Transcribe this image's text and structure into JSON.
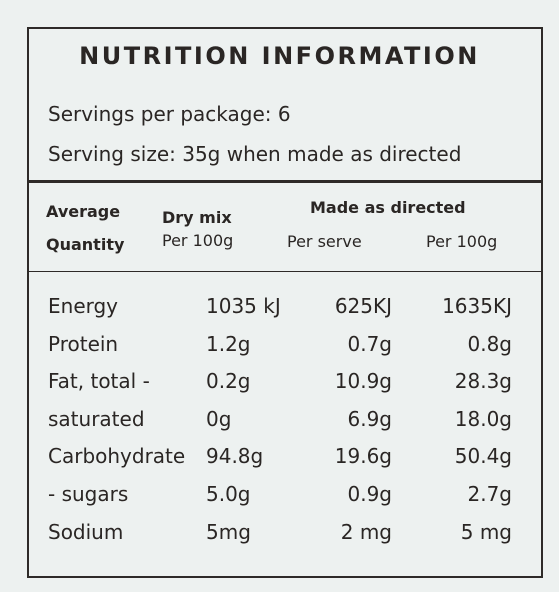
{
  "header": {
    "title": "NUTRITION INFORMATION",
    "servings": "Servings per package: 6",
    "serving_size": "Serving size:  35g when made as directed"
  },
  "table": {
    "columns": {
      "average": "Average",
      "quantity": "Quantity",
      "dry_mix": "Dry mix",
      "dry_mix_sub": "Per 100g",
      "made": "Made as directed",
      "per_serve": "Per serve",
      "per_100g": "Per 100g"
    },
    "rows": [
      [
        "Energy",
        "1035 kJ",
        "625KJ",
        "1635KJ"
      ],
      [
        "Protein",
        "1.2g",
        "0.7g",
        "0.8g"
      ],
      [
        "Fat, total -",
        "0.2g",
        "10.9g",
        "28.3g"
      ],
      [
        "saturated",
        "0g",
        "6.9g",
        "18.0g"
      ],
      [
        "Carbohydrate",
        "94.8g",
        "19.6g",
        "50.4g"
      ],
      [
        "- sugars",
        "5.0g",
        "0.9g",
        "2.7g"
      ],
      [
        "Sodium",
        "5mg",
        "2 mg",
        "5 mg"
      ]
    ]
  }
}
